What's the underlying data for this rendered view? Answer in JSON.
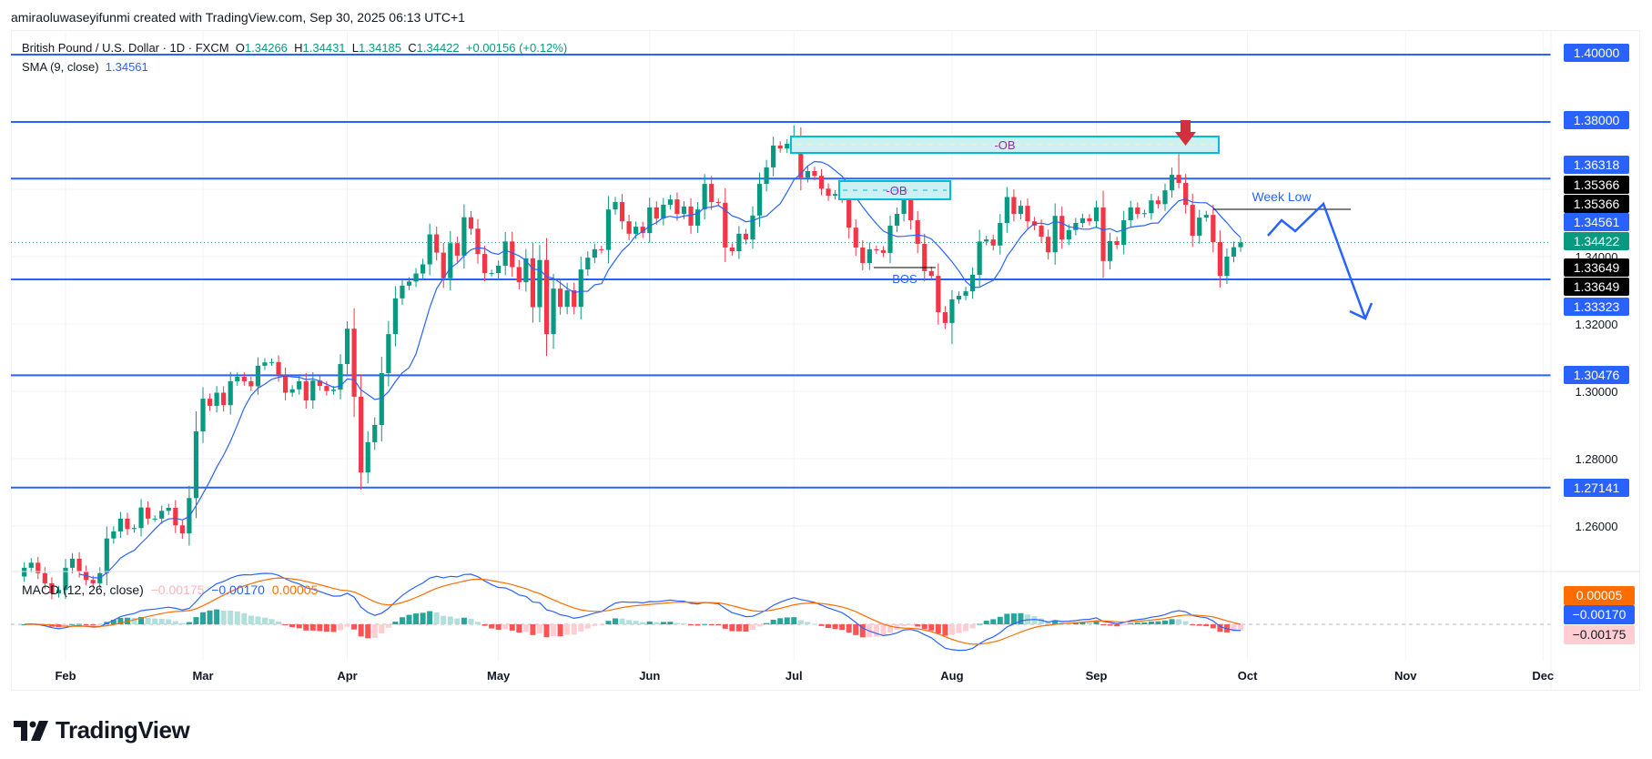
{
  "attribution": "amiraoluwaseyifunmi created with TradingView.com, Sep 30, 2025 06:13 UTC+1",
  "legend": {
    "symbol": "British Pound / U.S. Dollar · 1D · FXCM",
    "o_label": "O",
    "o": "1.34266",
    "h_label": "H",
    "h": "1.34431",
    "l_label": "L",
    "l": "1.34185",
    "c_label": "C",
    "c": "1.34422",
    "change": "+0.00156 (+0.12%)",
    "sma_label": "SMA (9, close)",
    "sma_value": "1.34561",
    "macd_label": "MACD (12, 26, close)",
    "macd_hist": "−0.00175",
    "macd_value": "−0.00170",
    "macd_signal": "0.00005"
  },
  "price_axis": {
    "ticks": [
      "1.40000",
      "1.38000",
      "1.36000",
      "1.34000",
      "1.32000",
      "1.30000",
      "1.28000",
      "1.26000"
    ],
    "badges": [
      {
        "text": "1.40000",
        "kind": "level"
      },
      {
        "text": "1.38000",
        "kind": "level"
      },
      {
        "text": "1.36318",
        "kind": "level"
      },
      {
        "text": "1.35366",
        "kind": "line"
      },
      {
        "text": "1.35366",
        "kind": "line"
      },
      {
        "text": "1.34561",
        "kind": "sma"
      },
      {
        "text": "1.34422",
        "kind": "last"
      },
      {
        "text": "1.33649",
        "kind": "line"
      },
      {
        "text": "1.33649",
        "kind": "line"
      },
      {
        "text": "1.33323",
        "kind": "level"
      },
      {
        "text": "1.30476",
        "kind": "level"
      },
      {
        "text": "1.27141",
        "kind": "level"
      }
    ]
  },
  "macd_axis": {
    "badges": [
      {
        "text": "0.00005",
        "kind": "signal"
      },
      {
        "text": "−0.00170",
        "kind": "macd"
      },
      {
        "text": "−0.00175",
        "kind": "hist"
      }
    ]
  },
  "annotations": {
    "ob_upper": "-OB",
    "ob_lower": "-OB",
    "bos": "BOS",
    "week_low": "Week Low"
  },
  "logo": "TradingView",
  "colors": {
    "up": "#089981",
    "down": "#f23645",
    "level": "#2962ff",
    "sma": "#2962ff",
    "signal": "#ff6d00",
    "ob_fill": "#cdf1f3",
    "ob_border": "#00bcd4",
    "ob_text": "#9c27b0",
    "arrow": "#d32f3f"
  },
  "chart_data": {
    "type": "candlestick",
    "title": "British Pound / U.S. Dollar · 1D · FXCM",
    "first_bar_date": "2025-01-24",
    "ylim": [
      1.245,
      1.405
    ],
    "levels": [
      1.4,
      1.38,
      1.36318,
      1.33323,
      1.30476,
      1.27141
    ],
    "week_low": 1.35366,
    "bos": 1.33649,
    "last_price": 1.34422,
    "month_ticks": [
      {
        "label": "Feb",
        "bar": 6
      },
      {
        "label": "Mar",
        "bar": 26
      },
      {
        "label": "Apr",
        "bar": 47
      },
      {
        "label": "May",
        "bar": 69
      },
      {
        "label": "Jun",
        "bar": 91
      },
      {
        "label": "Jul",
        "bar": 112
      },
      {
        "label": "Aug",
        "bar": 135
      },
      {
        "label": "Sep",
        "bar": 156
      },
      {
        "label": "Oct",
        "bar": 178
      },
      {
        "label": "Nov",
        "bar": 201
      },
      {
        "label": "Dec",
        "bar": 221
      }
    ],
    "sma_period": 9,
    "macd_params": [
      12,
      26,
      9
    ],
    "first_open": 1.245,
    "closes": [
      1.2476,
      1.2491,
      1.246,
      1.243,
      1.24,
      1.241,
      1.2476,
      1.2503,
      1.2466,
      1.244,
      1.243,
      1.246,
      1.2563,
      1.2584,
      1.2622,
      1.2591,
      1.2594,
      1.2655,
      1.2622,
      1.2622,
      1.2645,
      1.2654,
      1.2602,
      1.2578,
      1.2683,
      1.2881,
      1.2978,
      1.2957,
      1.2996,
      1.2959,
      1.303,
      1.3043,
      1.303,
      1.3015,
      1.3076,
      1.3086,
      1.3087,
      1.3048,
      1.2996,
      1.3006,
      1.303,
      1.2973,
      1.3032,
      1.3016,
      1.3001,
      1.3005,
      1.3081,
      1.3186,
      1.2984,
      1.2759,
      1.2849,
      1.29,
      1.3054,
      1.317,
      1.3276,
      1.3314,
      1.3326,
      1.335,
      1.3377,
      1.3466,
      1.3412,
      1.3336,
      1.344,
      1.3403,
      1.3517,
      1.3483,
      1.3408,
      1.3351,
      1.3351,
      1.3373,
      1.3445,
      1.3369,
      1.3324,
      1.3395,
      1.325,
      1.339,
      1.317,
      1.3305,
      1.3251,
      1.33,
      1.3251,
      1.3362,
      1.3397,
      1.3422,
      1.342,
      1.354,
      1.3562,
      1.3505,
      1.3468,
      1.3489,
      1.347,
      1.3546,
      1.3513,
      1.3554,
      1.357,
      1.3527,
      1.3549,
      1.3492,
      1.354,
      1.3616,
      1.3562,
      1.356,
      1.3427,
      1.3416,
      1.3468,
      1.3451,
      1.3522,
      1.3616,
      1.3665,
      1.373,
      1.3721,
      1.3735,
      1.3746,
      1.3635,
      1.3654,
      1.364,
      1.3602,
      1.3581,
      1.3586,
      1.3573,
      1.3486,
      1.3427,
      1.3381,
      1.3422,
      1.3419,
      1.3411,
      1.3492,
      1.3527,
      1.3578,
      1.3508,
      1.3438,
      1.3357,
      1.3343,
      1.3235,
      1.3203,
      1.3273,
      1.3284,
      1.3297,
      1.3346,
      1.3445,
      1.3451,
      1.3433,
      1.35,
      1.3577,
      1.3527,
      1.3551,
      1.3505,
      1.3492,
      1.3459,
      1.3413,
      1.3521,
      1.3451,
      1.3479,
      1.35,
      1.3514,
      1.3505,
      1.3546,
      1.3387,
      1.3446,
      1.3435,
      1.3508,
      1.3546,
      1.3527,
      1.3529,
      1.3567,
      1.3556,
      1.3597,
      1.3643,
      1.3619,
      1.3554,
      1.3462,
      1.3516,
      1.3524,
      1.3443,
      1.3343,
      1.34,
      1.3428,
      1.3442
    ],
    "extremes": [
      {
        "bar": 47,
        "high": 1.3208
      },
      {
        "bar": 49,
        "low": 1.2708
      },
      {
        "bar": 112,
        "high": 1.379
      },
      {
        "bar": 135,
        "low": 1.314
      },
      {
        "bar": 168,
        "high": 1.373
      }
    ]
  }
}
